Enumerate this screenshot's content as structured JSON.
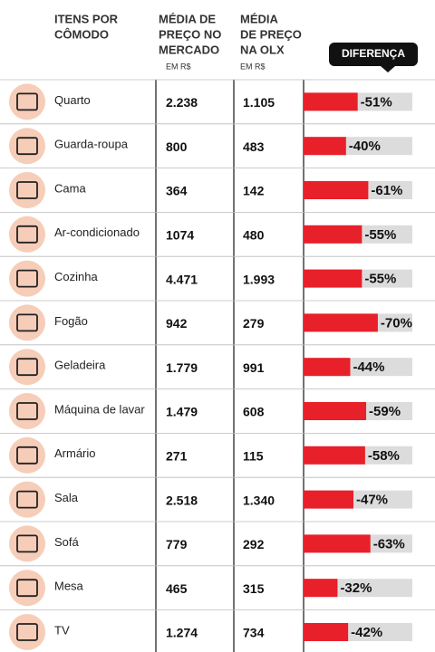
{
  "header": {
    "item": [
      "ITENS POR",
      "CÔMODO"
    ],
    "market": [
      "MÉDIA DE",
      "PREÇO NO",
      "MERCADO"
    ],
    "market_unit": "EM R$",
    "olx": [
      "MÉDIA",
      "DE PREÇO",
      "NA OLX"
    ],
    "olx_unit": "EM R$",
    "difference": "DIFERENÇA"
  },
  "rows": [
    {
      "item": "Quarto",
      "market": "2.238",
      "olx": "1.105",
      "difference": -51,
      "difference_label": "-51%"
    },
    {
      "item": "Guarda-roupa",
      "market": "800",
      "olx": "483",
      "difference": -40,
      "difference_label": "-40%"
    },
    {
      "item": "Cama",
      "market": "364",
      "olx": "142",
      "difference": -61,
      "difference_label": "-61%"
    },
    {
      "item": "Ar-condicionado",
      "market": "1074",
      "olx": "480",
      "difference": -55,
      "difference_label": "-55%"
    },
    {
      "item": "Cozinha",
      "market": "4.471",
      "olx": "1.993",
      "difference": -55,
      "difference_label": "-55%"
    },
    {
      "item": "Fogão",
      "market": "942",
      "olx": "279",
      "difference": -70,
      "difference_label": "-70%"
    },
    {
      "item": "Geladeira",
      "market": "1.779",
      "olx": "991",
      "difference": -44,
      "difference_label": "-44%"
    },
    {
      "item": "Máquina de lavar",
      "market": "1.479",
      "olx": "608",
      "difference": -59,
      "difference_label": "-59%"
    },
    {
      "item": "Armário",
      "market": "271",
      "olx": "115",
      "difference": -58,
      "difference_label": "-58%"
    },
    {
      "item": "Sala",
      "market": "2.518",
      "olx": "1.340",
      "difference": -47,
      "difference_label": "-47%"
    },
    {
      "item": "Sofá",
      "market": "779",
      "olx": "292",
      "difference": -63,
      "difference_label": "-63%"
    },
    {
      "item": "Mesa",
      "market": "465",
      "olx": "315",
      "difference": -32,
      "difference_label": "-32%"
    },
    {
      "item": "TV",
      "market": "1.274",
      "olx": "734",
      "difference": -42,
      "difference_label": "-42%"
    }
  ]
}
